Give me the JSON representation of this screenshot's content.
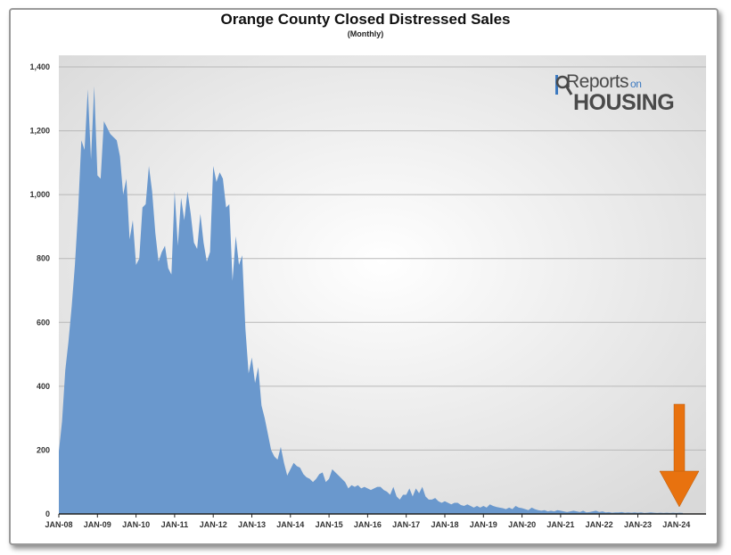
{
  "chart_data": {
    "type": "area",
    "title": "Orange County Closed Distressed Sales",
    "subtitle": "(Monthly)",
    "xlabel": "",
    "ylabel": "",
    "ylim": [
      0,
      1400
    ],
    "yticks": [
      "0",
      "200",
      "400",
      "600",
      "800",
      "1,000",
      "1,200",
      "1,400"
    ],
    "x_tick_labels": [
      "JAN-08",
      "JAN-09",
      "JAN-10",
      "JAN-11",
      "JAN-12",
      "JAN-13",
      "JAN-14",
      "JAN-15",
      "JAN-16",
      "JAN-17",
      "JAN-18",
      "JAN-19",
      "JAN-20",
      "JAN-21",
      "JAN-22",
      "JAN-23",
      "JAN-24"
    ],
    "grid": true,
    "series_color": "#6a98cd",
    "arrow_color": "#e8720f",
    "start_month": "JAN-08",
    "values": [
      195,
      290,
      450,
      540,
      650,
      780,
      950,
      1170,
      1140,
      1330,
      1110,
      1340,
      1060,
      1050,
      1230,
      1210,
      1190,
      1180,
      1170,
      1120,
      1000,
      1050,
      860,
      920,
      780,
      800,
      960,
      970,
      1090,
      1010,
      880,
      790,
      820,
      840,
      770,
      750,
      1010,
      840,
      990,
      920,
      1010,
      940,
      850,
      830,
      940,
      850,
      790,
      820,
      1090,
      1040,
      1070,
      1050,
      960,
      970,
      730,
      870,
      780,
      810,
      580,
      440,
      490,
      410,
      460,
      340,
      300,
      250,
      200,
      180,
      170,
      210,
      160,
      120,
      140,
      160,
      150,
      145,
      125,
      115,
      110,
      100,
      110,
      125,
      130,
      100,
      110,
      140,
      130,
      120,
      110,
      100,
      80,
      90,
      85,
      90,
      80,
      85,
      80,
      75,
      80,
      85,
      85,
      75,
      70,
      60,
      85,
      55,
      45,
      60,
      60,
      80,
      55,
      80,
      65,
      85,
      55,
      45,
      45,
      50,
      40,
      35,
      40,
      35,
      30,
      35,
      35,
      28,
      25,
      30,
      25,
      20,
      25,
      20,
      25,
      20,
      30,
      25,
      22,
      20,
      18,
      15,
      20,
      15,
      25,
      20,
      18,
      15,
      12,
      20,
      15,
      12,
      10,
      12,
      8,
      10,
      8,
      12,
      10,
      8,
      6,
      8,
      10,
      8,
      6,
      10,
      5,
      6,
      8,
      10,
      6,
      8,
      5,
      6,
      4,
      5,
      5,
      6,
      4,
      5,
      4,
      5,
      4,
      5,
      3,
      4,
      5,
      4,
      3,
      4,
      3,
      4,
      3,
      4,
      3,
      4,
      3
    ]
  },
  "logo": {
    "line1": "Reports",
    "line1_small": "on",
    "line2": "HOUSING"
  }
}
